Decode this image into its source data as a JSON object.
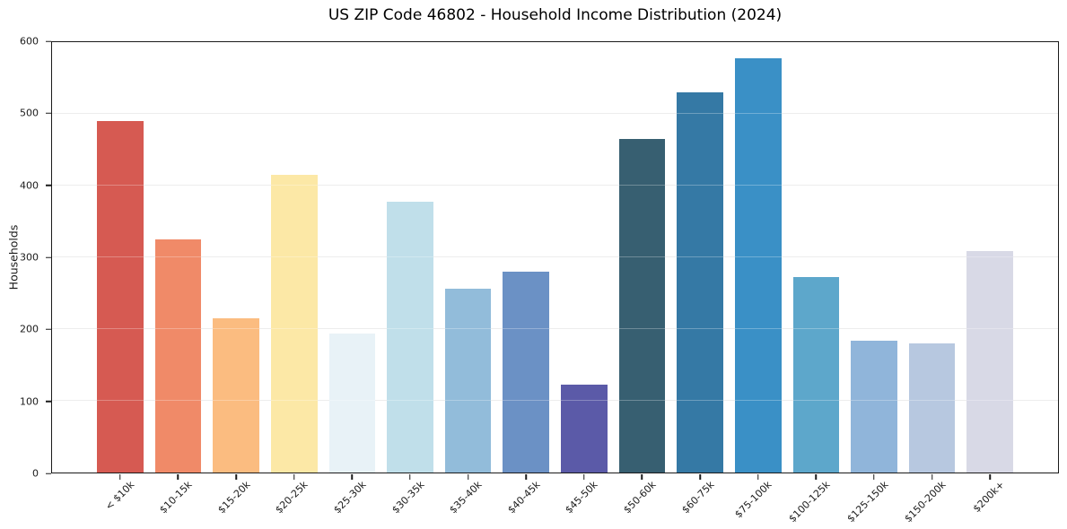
{
  "chart_data": {
    "type": "bar",
    "title": "US ZIP Code 46802 - Household Income Distribution (2024)",
    "xlabel": "",
    "ylabel": "Households",
    "categories": [
      "< $10k",
      "$10-15k",
      "$15-20k",
      "$20-25k",
      "$25-30k",
      "$30-35k",
      "$35-40k",
      "$40-45k",
      "$45-50k",
      "$50-60k",
      "$60-75k",
      "$75-100k",
      "$100-125k",
      "$125-150k",
      "$150-200k",
      "$200k+"
    ],
    "values": [
      490,
      325,
      215,
      415,
      194,
      377,
      256,
      280,
      122,
      465,
      530,
      578,
      272,
      184,
      180,
      309
    ],
    "bar_colors": [
      "#d65a52",
      "#f08a68",
      "#fbbc80",
      "#fce8a6",
      "#e8f2f7",
      "#c0dfea",
      "#92bcda",
      "#6b91c5",
      "#5b5aa8",
      "#375f71",
      "#3579a5",
      "#3a90c6",
      "#5da7cb",
      "#90b5da",
      "#b7c8e0",
      "#d8d9e6"
    ],
    "ylim": [
      0,
      600
    ],
    "yticks": [
      0,
      100,
      200,
      300,
      400,
      500,
      600
    ],
    "x_tick_rotation": 45,
    "grid": "horizontal",
    "legend_position": "none"
  },
  "style_colors": {
    "spine": "#1a1a1a",
    "gridline": "#e7e7e7",
    "background": "#ffffff",
    "text": "#1a1a1a"
  }
}
